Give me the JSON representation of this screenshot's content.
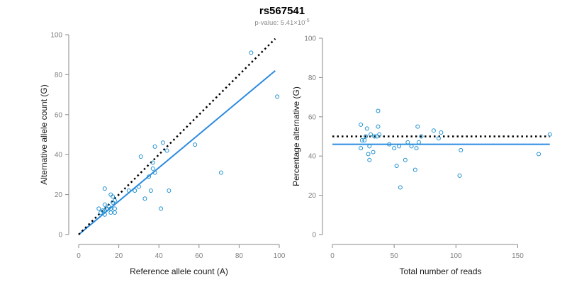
{
  "title": "rs567541",
  "subtitle": {
    "prefix": "p-value: 5.41×10",
    "exponent": "-5"
  },
  "colors": {
    "points": "#1e90d0",
    "fit_line": "#2b8be0",
    "reference_line": "#000000",
    "axis": "#8a8a8a",
    "tick_text": "#7f7f7f"
  },
  "chart_data": [
    {
      "type": "scatter",
      "xlabel": "Reference allele count (A)",
      "ylabel": "Alternative allele count (G)",
      "xlim": [
        0,
        100
      ],
      "ylim": [
        0,
        100
      ],
      "xticks": [
        0,
        20,
        40,
        60,
        80,
        100
      ],
      "yticks": [
        0,
        20,
        40,
        60,
        80,
        100
      ],
      "grid": false,
      "points": [
        [
          10,
          13
        ],
        [
          11,
          11
        ],
        [
          12,
          12
        ],
        [
          13,
          23
        ],
        [
          13,
          15
        ],
        [
          13,
          10
        ],
        [
          13,
          12
        ],
        [
          14,
          13
        ],
        [
          15,
          14
        ],
        [
          16,
          20
        ],
        [
          16,
          11
        ],
        [
          16,
          13
        ],
        [
          17,
          16
        ],
        [
          17,
          19
        ],
        [
          18,
          13
        ],
        [
          18,
          17
        ],
        [
          18,
          11
        ],
        [
          25,
          22
        ],
        [
          28,
          22
        ],
        [
          30,
          24
        ],
        [
          31,
          39
        ],
        [
          33,
          18
        ],
        [
          35,
          29
        ],
        [
          36,
          22
        ],
        [
          37,
          33
        ],
        [
          37,
          36
        ],
        [
          38,
          31
        ],
        [
          38,
          44
        ],
        [
          41,
          13
        ],
        [
          42,
          46
        ],
        [
          44,
          42
        ],
        [
          45,
          22
        ],
        [
          58,
          45
        ],
        [
          71,
          31
        ],
        [
          86,
          91
        ],
        [
          99,
          69
        ]
      ],
      "fit_line": [
        [
          0,
          0
        ],
        [
          98,
          82
        ]
      ],
      "reference_line": [
        [
          0,
          0
        ],
        [
          98,
          98
        ]
      ]
    },
    {
      "type": "scatter",
      "xlabel": "Total number of reads",
      "ylabel": "Percentage alternative (G)",
      "xlim": [
        0,
        175
      ],
      "ylim": [
        0,
        100
      ],
      "xticks": [
        0,
        50,
        100,
        150
      ],
      "yticks": [
        0,
        20,
        40,
        60,
        80,
        100
      ],
      "grid": false,
      "points": [
        [
          23,
          56
        ],
        [
          23,
          44
        ],
        [
          24,
          48
        ],
        [
          26,
          48
        ],
        [
          27,
          50
        ],
        [
          28,
          54
        ],
        [
          29,
          41
        ],
        [
          30,
          38
        ],
        [
          30,
          45
        ],
        [
          31,
          51
        ],
        [
          33,
          42
        ],
        [
          34,
          50
        ],
        [
          36,
          50
        ],
        [
          37,
          63
        ],
        [
          37,
          55
        ],
        [
          38,
          51
        ],
        [
          46,
          46
        ],
        [
          50,
          44
        ],
        [
          52,
          35
        ],
        [
          54,
          45
        ],
        [
          55,
          24
        ],
        [
          59,
          38
        ],
        [
          61,
          47
        ],
        [
          64,
          45
        ],
        [
          67,
          33
        ],
        [
          68,
          44
        ],
        [
          69,
          55
        ],
        [
          70,
          47
        ],
        [
          72,
          50
        ],
        [
          82,
          53
        ],
        [
          86,
          49
        ],
        [
          88,
          52
        ],
        [
          103,
          30
        ],
        [
          104,
          43
        ],
        [
          167,
          41
        ],
        [
          176,
          51
        ]
      ],
      "fit_line": [
        [
          0,
          46
        ],
        [
          176,
          46
        ]
      ],
      "reference_line": [
        [
          0,
          50
        ],
        [
          176,
          50
        ]
      ]
    }
  ]
}
